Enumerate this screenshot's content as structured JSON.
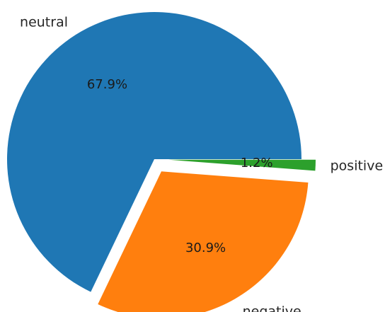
{
  "chart_data": {
    "type": "pie",
    "slices": [
      {
        "label": "neutral",
        "value": 67.9,
        "pct_label": "67.9%",
        "color": "#1f77b4",
        "exploded": false
      },
      {
        "label": "negative",
        "value": 30.9,
        "pct_label": "30.9%",
        "color": "#ff7f0e",
        "exploded": true
      },
      {
        "label": "positive",
        "value": 1.2,
        "pct_label": "1.2%",
        "color": "#2ca02c",
        "exploded": true
      }
    ],
    "start_angle_deg": 0,
    "direction": "counterclockwise",
    "legend": "none"
  }
}
